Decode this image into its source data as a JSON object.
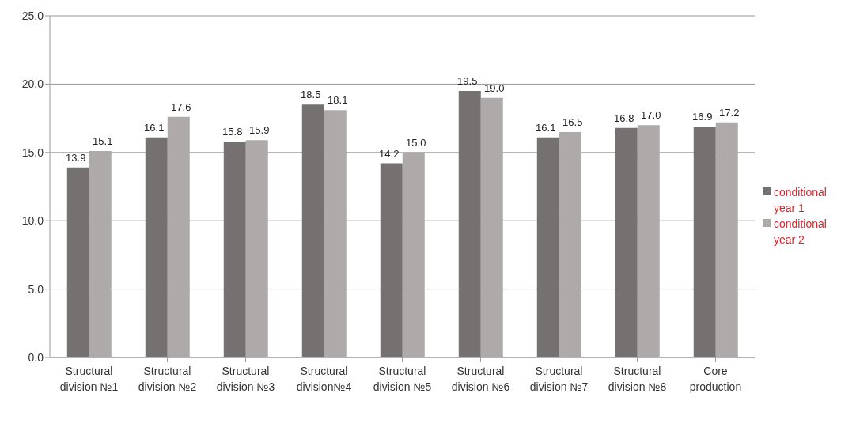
{
  "chart_data": {
    "type": "bar",
    "categories": [
      "Structural division №1",
      "Structural division №2",
      "Structural division №3",
      "Structural division№4",
      "Structural division №5",
      "Structural division №6",
      "Structural division №7",
      "Structural division №8",
      "Core production"
    ],
    "series": [
      {
        "name": "conditional year 1",
        "color": "#767171",
        "values": [
          13.9,
          16.1,
          15.8,
          18.5,
          14.2,
          19.5,
          16.1,
          16.8,
          16.9
        ],
        "value_labels": [
          "13.9",
          "16.1",
          "15.8",
          "18.5",
          "14.2",
          "19.5",
          "16.1",
          "16.8",
          "16.9"
        ]
      },
      {
        "name": "conditional year 2",
        "color": "#aeaaaa",
        "values": [
          15.1,
          17.6,
          15.9,
          18.1,
          15.0,
          19.0,
          16.5,
          17.0,
          17.2
        ],
        "value_labels": [
          "15.1",
          "17.6",
          "15.9",
          "18.1",
          "15.0",
          "19.0",
          "16.5",
          "17.0",
          "17.2"
        ]
      }
    ],
    "ylim": [
      0,
      25
    ],
    "yticks": [
      {
        "value": 0,
        "label": "0.0"
      },
      {
        "value": 5,
        "label": "5.0"
      },
      {
        "value": 10,
        "label": "10.0"
      },
      {
        "value": 15,
        "label": "15.0"
      },
      {
        "value": 20,
        "label": "20.0"
      },
      {
        "value": 25,
        "label": "25.0"
      }
    ],
    "grid": "y",
    "legend": "right"
  }
}
